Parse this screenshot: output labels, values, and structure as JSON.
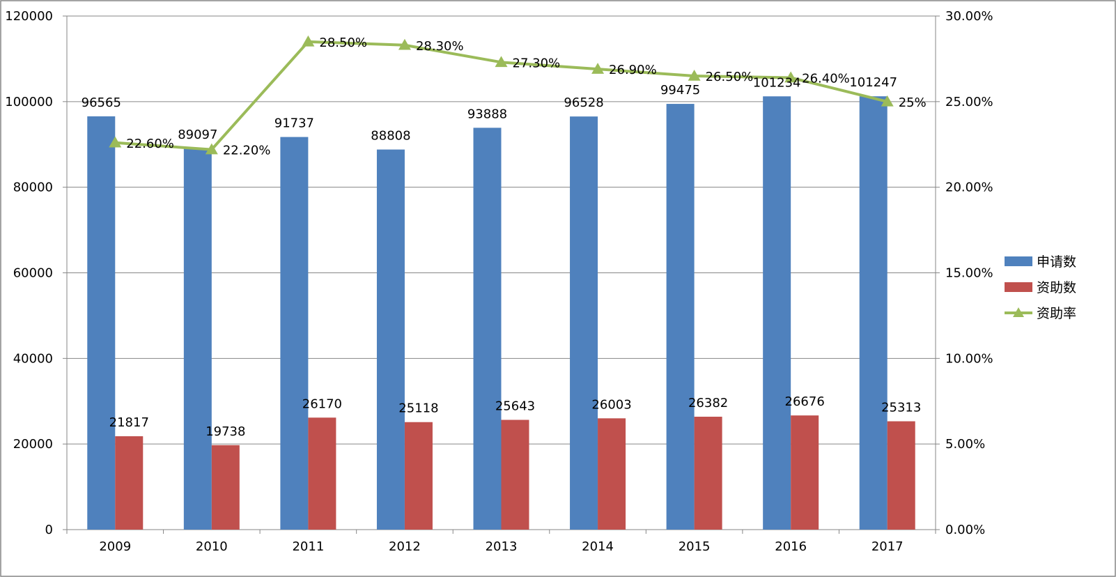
{
  "chart_data": {
    "type": "bar",
    "title": "",
    "xlabel": "",
    "ylabel": "",
    "categories": [
      "2009",
      "2010",
      "2011",
      "2012",
      "2013",
      "2014",
      "2015",
      "2016",
      "2017"
    ],
    "series": [
      {
        "name": "申请数",
        "kind": "bar",
        "axis": "left",
        "color": "#4F81BD",
        "values": [
          96565,
          89097,
          91737,
          88808,
          93888,
          96528,
          99475,
          101234,
          101247
        ],
        "labels": [
          "96565",
          "89097",
          "91737",
          "88808",
          "93888",
          "96528",
          "99475",
          "101234",
          "101247"
        ]
      },
      {
        "name": "资助数",
        "kind": "bar",
        "axis": "left",
        "color": "#C0504D",
        "values": [
          21817,
          19738,
          26170,
          25118,
          25643,
          26003,
          26382,
          26676,
          25313
        ],
        "labels": [
          "21817",
          "19738",
          "26170",
          "25118",
          "25643",
          "26003",
          "26382",
          "26676",
          "25313"
        ]
      },
      {
        "name": "资助率",
        "kind": "line",
        "axis": "right",
        "color": "#9BBB59",
        "marker": "triangle",
        "values": [
          22.6,
          22.2,
          28.5,
          28.3,
          27.3,
          26.9,
          26.5,
          26.4,
          25.0
        ],
        "labels": [
          "22.60%",
          "22.20%",
          "28.50%",
          "28.30%",
          "27.30%",
          "26.90%",
          "26.50%",
          "26.40%",
          "25%"
        ]
      }
    ],
    "y_left": {
      "lim": [
        0,
        120000
      ],
      "ticks": [
        "0",
        "20000",
        "40000",
        "60000",
        "80000",
        "100000",
        "120000"
      ]
    },
    "y_right": {
      "lim": [
        0,
        30
      ],
      "ticks": [
        "0.00%",
        "5.00%",
        "10.00%",
        "15.00%",
        "20.00%",
        "25.00%",
        "30.00%"
      ]
    },
    "grid": true,
    "legend_position": "right"
  }
}
